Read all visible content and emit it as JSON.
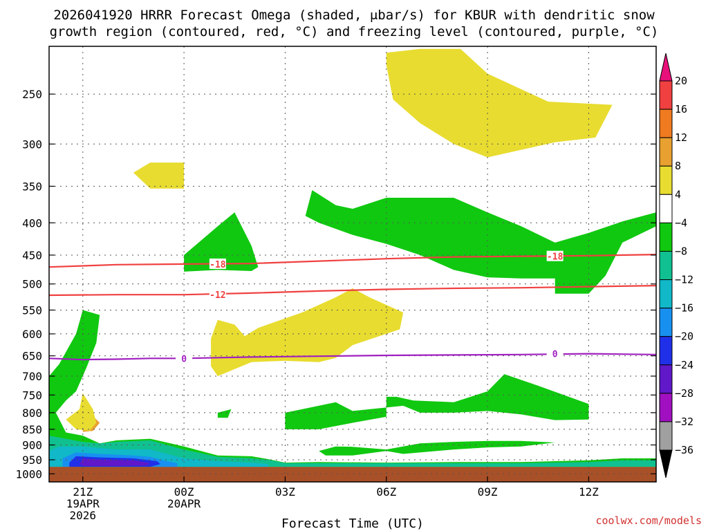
{
  "chart_data": {
    "type": "heatmap",
    "title_line1": "2026041920 HRRR Forecast Omega (shaded, μbar/s) for KBUR with dendritic snow",
    "title_line2": "growth region (contoured, red, °C) and freezing level (contoured, purple, °C)",
    "xlabel": "Forecast Time (UTC)",
    "x_ticks": [
      {
        "hour": 1,
        "lines": [
          "21Z",
          "19APR",
          "2026"
        ]
      },
      {
        "hour": 4,
        "lines": [
          "00Z",
          "20APR"
        ]
      },
      {
        "hour": 7,
        "lines": [
          "03Z"
        ]
      },
      {
        "hour": 10,
        "lines": [
          "06Z"
        ]
      },
      {
        "hour": 13,
        "lines": [
          "09Z"
        ]
      },
      {
        "hour": 16,
        "lines": [
          "12Z"
        ]
      }
    ],
    "xlim": [
      0,
      18
    ],
    "y_scale": "log",
    "ylim": [
      1030,
      210
    ],
    "y_ticks": [
      250,
      300,
      350,
      400,
      450,
      500,
      550,
      600,
      650,
      700,
      750,
      800,
      850,
      900,
      950,
      1000
    ],
    "colorbar": {
      "ticks": [
        "20",
        "16",
        "12",
        "8",
        "4",
        "−4",
        "−8",
        "−12",
        "−16",
        "−20",
        "−24",
        "−28",
        "−32",
        "−36"
      ],
      "colors": [
        "#e8107a",
        "#f04040",
        "#f07a20",
        "#e8a030",
        "#e8dc30",
        "#ffffff",
        "#10c810",
        "#10c090",
        "#10b8c8",
        "#1890f0",
        "#2030e8",
        "#6018c8",
        "#a010c0",
        "#a0a0a0",
        "#000000"
      ]
    },
    "contours": [
      {
        "name": "-18",
        "color": "#f04040",
        "points": [
          [
            0,
            470
          ],
          [
            2,
            466
          ],
          [
            4,
            465
          ],
          [
            6,
            464
          ],
          [
            8,
            460
          ],
          [
            10,
            456
          ],
          [
            12,
            453
          ],
          [
            14,
            452
          ],
          [
            16,
            451
          ],
          [
            18,
            449
          ]
        ],
        "label_at": [
          5,
          465
        ]
      },
      {
        "name": "-12",
        "color": "#f04040",
        "points": [
          [
            0,
            521
          ],
          [
            2,
            520
          ],
          [
            4,
            520
          ],
          [
            6,
            517
          ],
          [
            8,
            513
          ],
          [
            10,
            510
          ],
          [
            12,
            508
          ],
          [
            14,
            507
          ],
          [
            16,
            505
          ],
          [
            18,
            503
          ]
        ],
        "label_at": [
          5,
          520
        ]
      },
      {
        "name": "0",
        "color": "#a020c0",
        "points": [
          [
            0,
            656
          ],
          [
            1,
            659
          ],
          [
            2,
            658
          ],
          [
            3,
            656
          ],
          [
            4,
            656
          ],
          [
            6,
            653
          ],
          [
            8,
            651
          ],
          [
            10,
            649
          ],
          [
            12,
            648
          ],
          [
            14,
            647
          ],
          [
            16,
            645
          ],
          [
            18,
            647
          ]
        ],
        "label_at": [
          4,
          656
        ]
      },
      {
        "name": "-18",
        "color": "#f04040",
        "points": [],
        "label_at": [
          15,
          452
        ]
      },
      {
        "name": "0",
        "color": "#a020c0",
        "points": [],
        "label_at": [
          15,
          645
        ]
      }
    ],
    "shaded_regions": [
      {
        "level": "4",
        "color": "#e8dc30",
        "points": [
          [
            10.0,
            215
          ],
          [
            11.0,
            212
          ],
          [
            12.2,
            212
          ],
          [
            13.0,
            232
          ],
          [
            14.8,
            257
          ],
          [
            16.7,
            260
          ],
          [
            16.2,
            293
          ],
          [
            15.0,
            298
          ],
          [
            13.0,
            315
          ],
          [
            12.0,
            300
          ],
          [
            11.0,
            278
          ],
          [
            10.2,
            255
          ],
          [
            10.0,
            225
          ]
        ]
      },
      {
        "level": "4",
        "color": "#e8dc30",
        "points": [
          [
            2.5,
            333
          ],
          [
            3.0,
            321
          ],
          [
            4.0,
            321
          ],
          [
            4.0,
            353
          ],
          [
            3.0,
            353
          ]
        ]
      },
      {
        "level": "4",
        "color": "#e8dc30",
        "points": [
          [
            5.0,
            570
          ],
          [
            5.5,
            580
          ],
          [
            5.8,
            605
          ],
          [
            6.2,
            587
          ],
          [
            7.5,
            555
          ],
          [
            8.5,
            525
          ],
          [
            9.0,
            508
          ],
          [
            9.5,
            525
          ],
          [
            10.5,
            555
          ],
          [
            10.4,
            590
          ],
          [
            9.0,
            625
          ],
          [
            8.5,
            655
          ],
          [
            8.0,
            665
          ],
          [
            7.0,
            662
          ],
          [
            6.0,
            665
          ],
          [
            5.0,
            700
          ],
          [
            4.8,
            675
          ],
          [
            4.8,
            610
          ]
        ]
      },
      {
        "level": "4",
        "color": "#e8a030",
        "points": [
          [
            1.0,
            835
          ],
          [
            1.3,
            810
          ],
          [
            1.5,
            830
          ],
          [
            1.3,
            855
          ],
          [
            1.0,
            858
          ]
        ]
      },
      {
        "level": "4",
        "color": "#e8dc30",
        "points": [
          [
            0.5,
            820
          ],
          [
            0.9,
            790
          ],
          [
            1.0,
            745
          ],
          [
            1.3,
            790
          ],
          [
            1.4,
            830
          ],
          [
            1.2,
            855
          ],
          [
            0.8,
            850
          ]
        ]
      },
      {
        "level": "-4",
        "color": "#10c810",
        "points": [
          [
            7.6,
            390
          ],
          [
            7.8,
            355
          ],
          [
            8.5,
            375
          ],
          [
            9.0,
            380
          ],
          [
            10.0,
            365
          ],
          [
            11.0,
            365
          ],
          [
            12.0,
            365
          ],
          [
            13.0,
            385
          ],
          [
            14.0,
            405
          ],
          [
            15.0,
            430
          ],
          [
            16.0,
            415
          ],
          [
            17.0,
            398
          ],
          [
            18.0,
            385
          ],
          [
            18.0,
            405
          ],
          [
            17.0,
            430
          ],
          [
            16.5,
            485
          ],
          [
            16.0,
            518
          ],
          [
            15.0,
            518
          ],
          [
            15.0,
            490
          ],
          [
            14.0,
            490
          ],
          [
            13.0,
            488
          ],
          [
            12.0,
            475
          ],
          [
            11.0,
            450
          ],
          [
            10.0,
            432
          ],
          [
            9.0,
            418
          ],
          [
            8.0,
            400
          ]
        ]
      },
      {
        "level": "-4",
        "color": "#10c810",
        "points": [
          [
            4.0,
            450
          ],
          [
            5.0,
            405
          ],
          [
            5.5,
            385
          ],
          [
            6.0,
            435
          ],
          [
            6.2,
            470
          ],
          [
            6.0,
            477
          ],
          [
            5.0,
            475
          ],
          [
            4.0,
            478
          ]
        ]
      },
      {
        "level": "-4",
        "color": "#10c810",
        "points": [
          [
            10.0,
            755
          ],
          [
            10.3,
            755
          ],
          [
            10.8,
            765
          ],
          [
            12.0,
            770
          ],
          [
            13.0,
            740
          ],
          [
            13.5,
            695
          ],
          [
            14.5,
            725
          ],
          [
            16.0,
            775
          ],
          [
            16.0,
            820
          ],
          [
            15.0,
            822
          ],
          [
            14.0,
            805
          ],
          [
            13.0,
            795
          ],
          [
            12.0,
            800
          ],
          [
            11.0,
            800
          ],
          [
            10.5,
            780
          ],
          [
            9.0,
            795
          ],
          [
            8.5,
            770
          ],
          [
            7.5,
            790
          ],
          [
            7.0,
            800
          ],
          [
            7.0,
            850
          ],
          [
            8.0,
            850
          ],
          [
            9.0,
            830
          ],
          [
            10.0,
            812
          ],
          [
            10.0,
            780
          ]
        ]
      },
      {
        "level": "-4",
        "color": "#10c810",
        "points": [
          [
            5.0,
            800
          ],
          [
            5.4,
            790
          ],
          [
            5.3,
            815
          ],
          [
            5.0,
            815
          ]
        ]
      },
      {
        "level": "-4",
        "color": "#10c810",
        "points": [
          [
            8.0,
            920
          ],
          [
            8.5,
            905
          ],
          [
            9.0,
            906
          ],
          [
            10.0,
            915
          ],
          [
            11.0,
            895
          ],
          [
            12.0,
            890
          ],
          [
            13.0,
            887
          ],
          [
            14.0,
            887
          ],
          [
            15.0,
            892
          ],
          [
            14.0,
            905
          ],
          [
            13.0,
            908
          ],
          [
            12.0,
            915
          ],
          [
            11.0,
            925
          ],
          [
            10.5,
            930
          ],
          [
            10.0,
            920
          ],
          [
            9.0,
            935
          ],
          [
            8.2,
            935
          ]
        ]
      },
      {
        "level": "-4",
        "color": "#10c810",
        "points": [
          [
            0,
            700
          ],
          [
            0.3,
            670
          ],
          [
            0.8,
            600
          ],
          [
            1.0,
            550
          ],
          [
            1.5,
            560
          ],
          [
            1.4,
            620
          ],
          [
            1.1,
            680
          ],
          [
            0.8,
            740
          ],
          [
            0.5,
            765
          ],
          [
            0.2,
            800
          ],
          [
            0.5,
            860
          ],
          [
            1.0,
            870
          ],
          [
            1.5,
            895
          ],
          [
            2.0,
            885
          ],
          [
            3.0,
            880
          ],
          [
            4.0,
            905
          ],
          [
            5.0,
            935
          ],
          [
            6.0,
            938
          ],
          [
            6.5,
            948
          ],
          [
            7.0,
            960
          ],
          [
            8.0,
            958
          ],
          [
            10.0,
            960
          ],
          [
            12.0,
            958
          ],
          [
            14.0,
            958
          ],
          [
            15.0,
            955
          ],
          [
            16.0,
            952
          ],
          [
            17.0,
            945
          ],
          [
            18.0,
            945
          ],
          [
            18.0,
            975
          ],
          [
            0,
            975
          ]
        ]
      },
      {
        "level": "-8",
        "color": "#10c090",
        "points": [
          [
            0,
            870
          ],
          [
            0.5,
            880
          ],
          [
            1.0,
            890
          ],
          [
            1.5,
            895
          ],
          [
            2.0,
            890
          ],
          [
            3.0,
            885
          ],
          [
            4.0,
            915
          ],
          [
            5.0,
            940
          ],
          [
            6.0,
            945
          ],
          [
            6.5,
            950
          ],
          [
            7.0,
            962
          ],
          [
            8.0,
            962
          ],
          [
            14.0,
            962
          ],
          [
            16.0,
            958
          ],
          [
            17.0,
            952
          ],
          [
            18.0,
            952
          ],
          [
            18.0,
            975
          ],
          [
            0,
            975
          ]
        ]
      },
      {
        "level": "-12",
        "color": "#10b8c8",
        "points": [
          [
            0,
            920
          ],
          [
            0.3,
            905
          ],
          [
            1.0,
            905
          ],
          [
            2.0,
            915
          ],
          [
            3.0,
            915
          ],
          [
            3.5,
            930
          ],
          [
            4.0,
            945
          ],
          [
            5.0,
            955
          ],
          [
            6.0,
            960
          ],
          [
            6.5,
            965
          ],
          [
            6.5,
            975
          ],
          [
            0,
            975
          ]
        ]
      },
      {
        "level": "-16",
        "color": "#1890f0",
        "points": [
          [
            0.4,
            945
          ],
          [
            0.8,
            925
          ],
          [
            1.5,
            930
          ],
          [
            2.5,
            935
          ],
          [
            3.0,
            940
          ],
          [
            3.5,
            955
          ],
          [
            3.8,
            962
          ],
          [
            3.8,
            975
          ],
          [
            0.4,
            975
          ]
        ]
      },
      {
        "level": "-20",
        "color": "#2030e8",
        "points": [
          [
            0.6,
            960
          ],
          [
            0.8,
            938
          ],
          [
            1.5,
            942
          ],
          [
            2.5,
            945
          ],
          [
            3.2,
            955
          ],
          [
            3.3,
            965
          ],
          [
            3.0,
            975
          ],
          [
            0.6,
            975
          ]
        ]
      },
      {
        "level": "-24",
        "color": "#6018c8",
        "points": [
          [
            0.9,
            965
          ],
          [
            1.0,
            945
          ],
          [
            1.5,
            950
          ],
          [
            2.5,
            952
          ],
          [
            3.0,
            962
          ],
          [
            2.9,
            970
          ],
          [
            2.0,
            972
          ],
          [
            1.0,
            972
          ]
        ]
      },
      {
        "level": "ground",
        "color": "#a85028",
        "points": [
          [
            0,
            975
          ],
          [
            18,
            975
          ],
          [
            18,
            1030
          ],
          [
            0,
            1030
          ]
        ]
      }
    ]
  },
  "credit": "coolwx.com/models"
}
